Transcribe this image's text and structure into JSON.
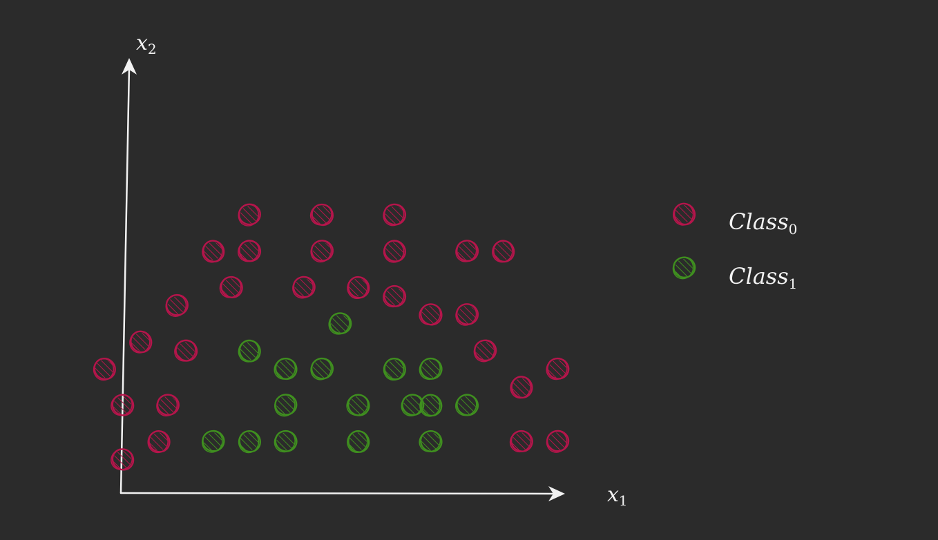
{
  "chart_data": {
    "type": "scatter",
    "title": "",
    "xlabel": {
      "base": "x",
      "sub": "1"
    },
    "ylabel": {
      "base": "x",
      "sub": "2"
    },
    "xlim": [
      0,
      12
    ],
    "ylim": [
      0,
      11
    ],
    "grid": false,
    "legend_position": "right",
    "series": [
      {
        "name": {
          "base": "Class",
          "sub": "0"
        },
        "color": "#b5154b",
        "points": [
          [
            3.5,
            7.5
          ],
          [
            5.5,
            7.5
          ],
          [
            7.5,
            7.5
          ],
          [
            2.5,
            6.5
          ],
          [
            3.5,
            6.5
          ],
          [
            5.5,
            6.5
          ],
          [
            7.5,
            6.5
          ],
          [
            9.5,
            6.5
          ],
          [
            10.5,
            6.5
          ],
          [
            3,
            5.5
          ],
          [
            5,
            5.5
          ],
          [
            6.5,
            5.5
          ],
          [
            7.5,
            5.25
          ],
          [
            1.5,
            5
          ],
          [
            8.5,
            4.75
          ],
          [
            9.5,
            4.75
          ],
          [
            0.5,
            4
          ],
          [
            1.75,
            3.75
          ],
          [
            10,
            3.75
          ],
          [
            -0.5,
            3.25
          ],
          [
            12,
            3.25
          ],
          [
            11,
            2.75
          ],
          [
            0,
            2.25
          ],
          [
            1.25,
            2.25
          ],
          [
            1,
            1.25
          ],
          [
            11,
            1.25
          ],
          [
            12,
            1.25
          ],
          [
            0,
            0.75
          ]
        ]
      },
      {
        "name": {
          "base": "Class",
          "sub": "1"
        },
        "color": "#3f8f1f",
        "points": [
          [
            6,
            4.5
          ],
          [
            3.5,
            3.75
          ],
          [
            4.5,
            3.25
          ],
          [
            5.5,
            3.25
          ],
          [
            7.5,
            3.25
          ],
          [
            8.5,
            3.25
          ],
          [
            4.5,
            2.25
          ],
          [
            6.5,
            2.25
          ],
          [
            8,
            2.25
          ],
          [
            8.5,
            2.25
          ],
          [
            9.5,
            2.25
          ],
          [
            2.5,
            1.25
          ],
          [
            3.5,
            1.25
          ],
          [
            4.5,
            1.25
          ],
          [
            6.5,
            1.25
          ],
          [
            8.5,
            1.25
          ]
        ]
      }
    ]
  }
}
